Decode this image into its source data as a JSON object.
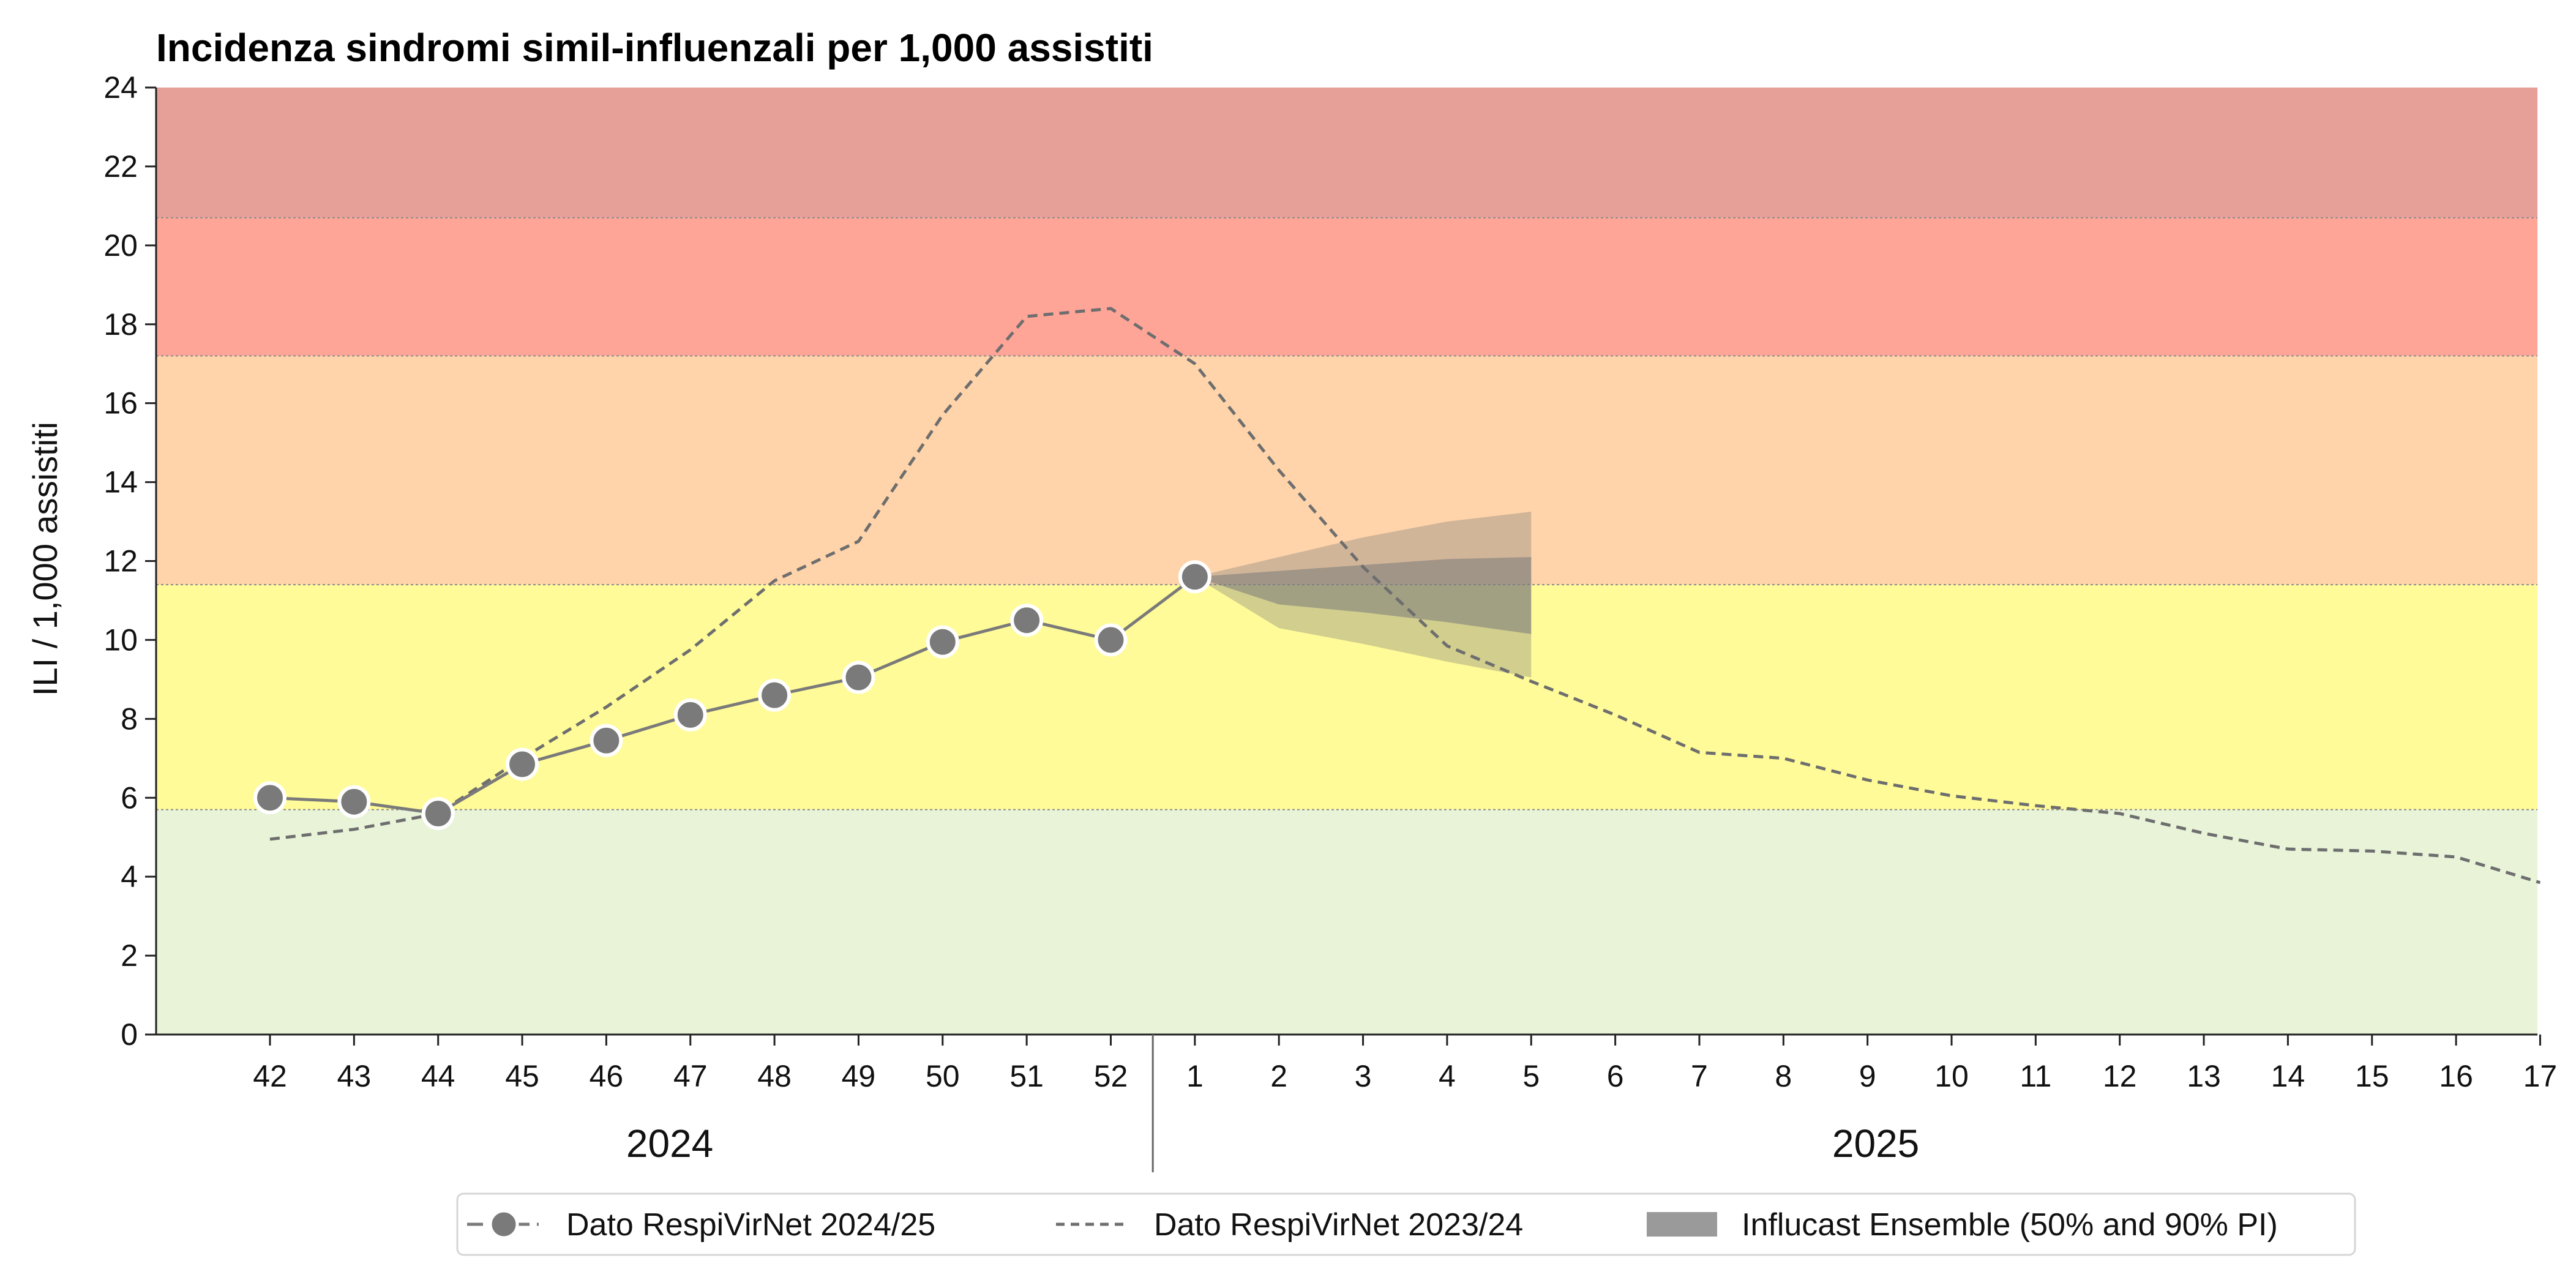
{
  "chart_data": {
    "type": "line",
    "title": "Incidenza sindromi simil-influenzali per 1,000 assistiti",
    "ylabel": "ILI / 1,000 assistiti",
    "ylim": [
      0,
      24
    ],
    "yticks": [
      "0",
      "2",
      "4",
      "6",
      "8",
      "10",
      "12",
      "14",
      "16",
      "18",
      "20",
      "22",
      "24"
    ],
    "x_tick_labels": [
      "42",
      "43",
      "44",
      "45",
      "46",
      "47",
      "48",
      "49",
      "50",
      "51",
      "52",
      "1",
      "2",
      "3",
      "4",
      "5",
      "6",
      "7",
      "8",
      "9",
      "10",
      "11",
      "12",
      "13",
      "14",
      "15",
      "16",
      "17"
    ],
    "year_labels": [
      "2024",
      "2025"
    ],
    "year_divider_after": "52",
    "threshold_bands": [
      {
        "from": 0,
        "to": 5.7,
        "color": "#e8f3d8"
      },
      {
        "from": 5.7,
        "to": 11.4,
        "color": "#fffb98"
      },
      {
        "from": 11.4,
        "to": 17.2,
        "color": "#ffd4aa"
      },
      {
        "from": 17.2,
        "to": 20.7,
        "color": "#ffa598"
      },
      {
        "from": 20.7,
        "to": 24,
        "color": "#e6a098"
      }
    ],
    "series": [
      {
        "name": "Dato RespiVirNet 2024/25",
        "style": "solid-markers",
        "color": "#7a7a7a",
        "x": [
          "42",
          "43",
          "44",
          "45",
          "46",
          "47",
          "48",
          "49",
          "50",
          "51",
          "52",
          "1"
        ],
        "values": [
          6.0,
          5.9,
          5.6,
          6.85,
          7.45,
          8.1,
          8.6,
          9.05,
          9.95,
          10.5,
          10.0,
          11.6
        ]
      },
      {
        "name": "Dato RespiVirNet 2023/24",
        "style": "dashed",
        "color": "#6e6e6e",
        "x": [
          "42",
          "43",
          "44",
          "45",
          "46",
          "47",
          "48",
          "49",
          "50",
          "51",
          "52",
          "1",
          "2",
          "3",
          "4",
          "5",
          "6",
          "7",
          "8",
          "9",
          "10",
          "11",
          "12",
          "13",
          "14",
          "15",
          "16",
          "17"
        ],
        "values": [
          4.95,
          5.2,
          5.6,
          7.0,
          8.3,
          9.75,
          11.5,
          12.5,
          15.7,
          18.2,
          18.4,
          17.0,
          14.3,
          11.85,
          9.85,
          8.95,
          8.1,
          7.15,
          7.0,
          6.45,
          6.05,
          5.8,
          5.6,
          5.1,
          4.7,
          4.65,
          4.5,
          3.85
        ]
      },
      {
        "name": "Influcast Ensemble (50% and 90% PI)",
        "style": "band",
        "color": "#7a7a7a",
        "x": [
          "1",
          "2",
          "3",
          "4",
          "5"
        ],
        "pi90_lower": [
          11.6,
          10.3,
          9.9,
          9.45,
          9.05
        ],
        "pi90_upper": [
          11.6,
          12.1,
          12.6,
          13.0,
          13.25
        ],
        "pi50_lower": [
          11.6,
          10.9,
          10.7,
          10.45,
          10.15
        ],
        "pi50_upper": [
          11.6,
          11.75,
          11.9,
          12.05,
          12.1
        ]
      }
    ],
    "legend_position": "bottom-center",
    "grid": false
  }
}
